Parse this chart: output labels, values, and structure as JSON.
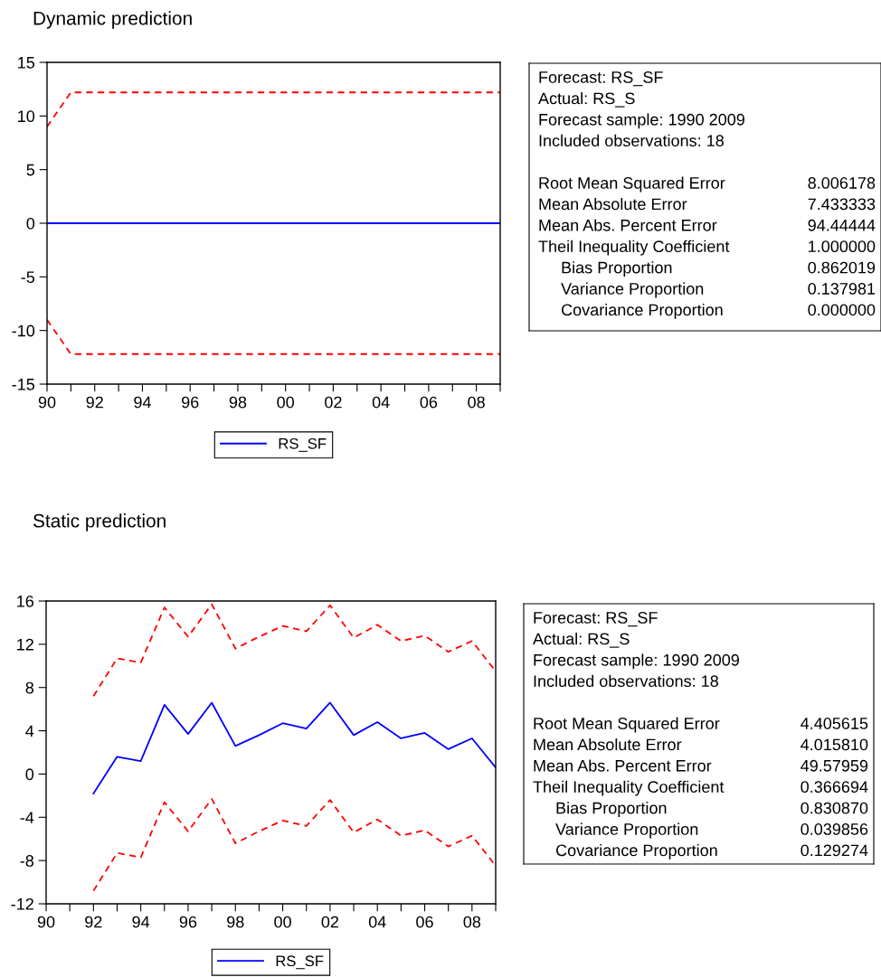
{
  "chart_data": [
    {
      "type": "line",
      "title": "Dynamic prediction",
      "xlim": [
        1990,
        2009
      ],
      "ylim": [
        -15,
        15
      ],
      "yticks": [
        -15,
        -10,
        -5,
        0,
        5,
        10,
        15
      ],
      "xticks": [
        {
          "value": 1990,
          "label": "90"
        },
        {
          "value": 1991,
          "label": null
        },
        {
          "value": 1992,
          "label": "92"
        },
        {
          "value": 1993,
          "label": null
        },
        {
          "value": 1994,
          "label": "94"
        },
        {
          "value": 1995,
          "label": null
        },
        {
          "value": 1996,
          "label": "96"
        },
        {
          "value": 1997,
          "label": null
        },
        {
          "value": 1998,
          "label": "98"
        },
        {
          "value": 1999,
          "label": null
        },
        {
          "value": 2000,
          "label": "00"
        },
        {
          "value": 2001,
          "label": null
        },
        {
          "value": 2002,
          "label": "02"
        },
        {
          "value": 2003,
          "label": null
        },
        {
          "value": 2004,
          "label": "04"
        },
        {
          "value": 2005,
          "label": null
        },
        {
          "value": 2006,
          "label": "06"
        },
        {
          "value": 2007,
          "label": null
        },
        {
          "value": 2008,
          "label": "08"
        },
        {
          "value": 2009,
          "label": null
        }
      ],
      "x": [
        1990,
        1991,
        1992,
        1993,
        1994,
        1995,
        1996,
        1997,
        1998,
        1999,
        2000,
        2001,
        2002,
        2003,
        2004,
        2005,
        2006,
        2007,
        2008,
        2009
      ],
      "series": [
        {
          "name": "RS_SF",
          "color": "#0000ff",
          "line_style": "solid",
          "values": [
            0,
            0,
            0,
            0,
            0,
            0,
            0,
            0,
            0,
            0,
            0,
            0,
            0,
            0,
            0,
            0,
            0,
            0,
            0,
            0
          ]
        },
        {
          "color": "#ff0000",
          "line_style": "dashed",
          "values": [
            9.0,
            12.2,
            12.2,
            12.2,
            12.2,
            12.2,
            12.2,
            12.2,
            12.2,
            12.2,
            12.2,
            12.2,
            12.2,
            12.2,
            12.2,
            12.2,
            12.2,
            12.2,
            12.2,
            12.2
          ]
        },
        {
          "color": "#ff0000",
          "line_style": "dashed",
          "values": [
            -9.0,
            -12.2,
            -12.2,
            -12.2,
            -12.2,
            -12.2,
            -12.2,
            -12.2,
            -12.2,
            -12.2,
            -12.2,
            -12.2,
            -12.2,
            -12.2,
            -12.2,
            -12.2,
            -12.2,
            -12.2,
            -12.2,
            -12.2
          ]
        }
      ],
      "grid": false,
      "legend": "bottom",
      "marker": "none"
    },
    {
      "type": "other",
      "annotations": [
        "Forecast: RS_SF",
        "Actual: RS_S",
        "Forecast sample: 1990 2009",
        "Included observations: 18"
      ],
      "categories": [
        "Root Mean Squared Error",
        "Mean Absolute Error",
        "Mean Abs. Percent Error",
        "Theil Inequality Coefficient",
        "     Bias Proportion",
        "     Variance Proportion",
        "     Covariance Proportion"
      ],
      "value_labels": [
        "8.006178",
        "7.433333",
        "94.44444",
        "1.000000",
        "0.862019",
        "0.137981",
        "0.000000"
      ]
    },
    {
      "type": "line",
      "title": "Static prediction",
      "xlim": [
        1990,
        2009
      ],
      "ylim": [
        -12,
        16
      ],
      "yticks": [
        -12,
        -8,
        -4,
        0,
        4,
        8,
        12,
        16
      ],
      "xticks": [
        {
          "value": 1990,
          "label": "90"
        },
        {
          "value": 1991,
          "label": null
        },
        {
          "value": 1992,
          "label": "92"
        },
        {
          "value": 1993,
          "label": null
        },
        {
          "value": 1994,
          "label": "94"
        },
        {
          "value": 1995,
          "label": null
        },
        {
          "value": 1996,
          "label": "96"
        },
        {
          "value": 1997,
          "label": null
        },
        {
          "value": 1998,
          "label": "98"
        },
        {
          "value": 1999,
          "label": null
        },
        {
          "value": 2000,
          "label": "00"
        },
        {
          "value": 2001,
          "label": null
        },
        {
          "value": 2002,
          "label": "02"
        },
        {
          "value": 2003,
          "label": null
        },
        {
          "value": 2004,
          "label": "04"
        },
        {
          "value": 2005,
          "label": null
        },
        {
          "value": 2006,
          "label": "06"
        },
        {
          "value": 2007,
          "label": null
        },
        {
          "value": 2008,
          "label": "08"
        },
        {
          "value": 2009,
          "label": null
        }
      ],
      "x": [
        1992,
        1993,
        1994,
        1995,
        1996,
        1997,
        1998,
        1999,
        2000,
        2001,
        2002,
        2003,
        2004,
        2005,
        2006,
        2007,
        2008,
        2009
      ],
      "series": [
        {
          "name": "RS_SF",
          "color": "#0000ff",
          "line_style": "solid",
          "values": [
            -1.8,
            1.6,
            1.2,
            6.4,
            3.7,
            6.6,
            2.6,
            3.6,
            4.7,
            4.2,
            6.6,
            3.6,
            4.8,
            3.3,
            3.8,
            2.3,
            3.3,
            0.6
          ]
        },
        {
          "color": "#ff0000",
          "line_style": "dashed",
          "values": [
            7.2,
            10.7,
            10.3,
            15.4,
            12.7,
            15.7,
            11.6,
            12.7,
            13.7,
            13.2,
            15.6,
            12.6,
            13.8,
            12.3,
            12.8,
            11.3,
            12.3,
            9.5
          ]
        },
        {
          "color": "#ff0000",
          "line_style": "dashed",
          "values": [
            -10.8,
            -7.3,
            -7.7,
            -2.6,
            -5.3,
            -2.3,
            -6.4,
            -5.3,
            -4.3,
            -4.8,
            -2.4,
            -5.4,
            -4.2,
            -5.7,
            -5.2,
            -6.7,
            -5.7,
            -8.5
          ]
        }
      ],
      "grid": false,
      "legend": "bottom",
      "marker": "none"
    },
    {
      "type": "other",
      "annotations": [
        "Forecast: RS_SF",
        "Actual: RS_S",
        "Forecast sample: 1990 2009",
        "Included observations: 18"
      ],
      "categories": [
        "Root Mean Squared Error",
        "Mean Absolute Error",
        "Mean Abs. Percent Error",
        "Theil Inequality Coefficient",
        "     Bias Proportion",
        "     Variance Proportion",
        "     Covariance Proportion"
      ],
      "value_labels": [
        "4.405615",
        "4.015810",
        "49.57959",
        "0.366694",
        "0.830870",
        "0.039856",
        "0.129274"
      ]
    }
  ]
}
